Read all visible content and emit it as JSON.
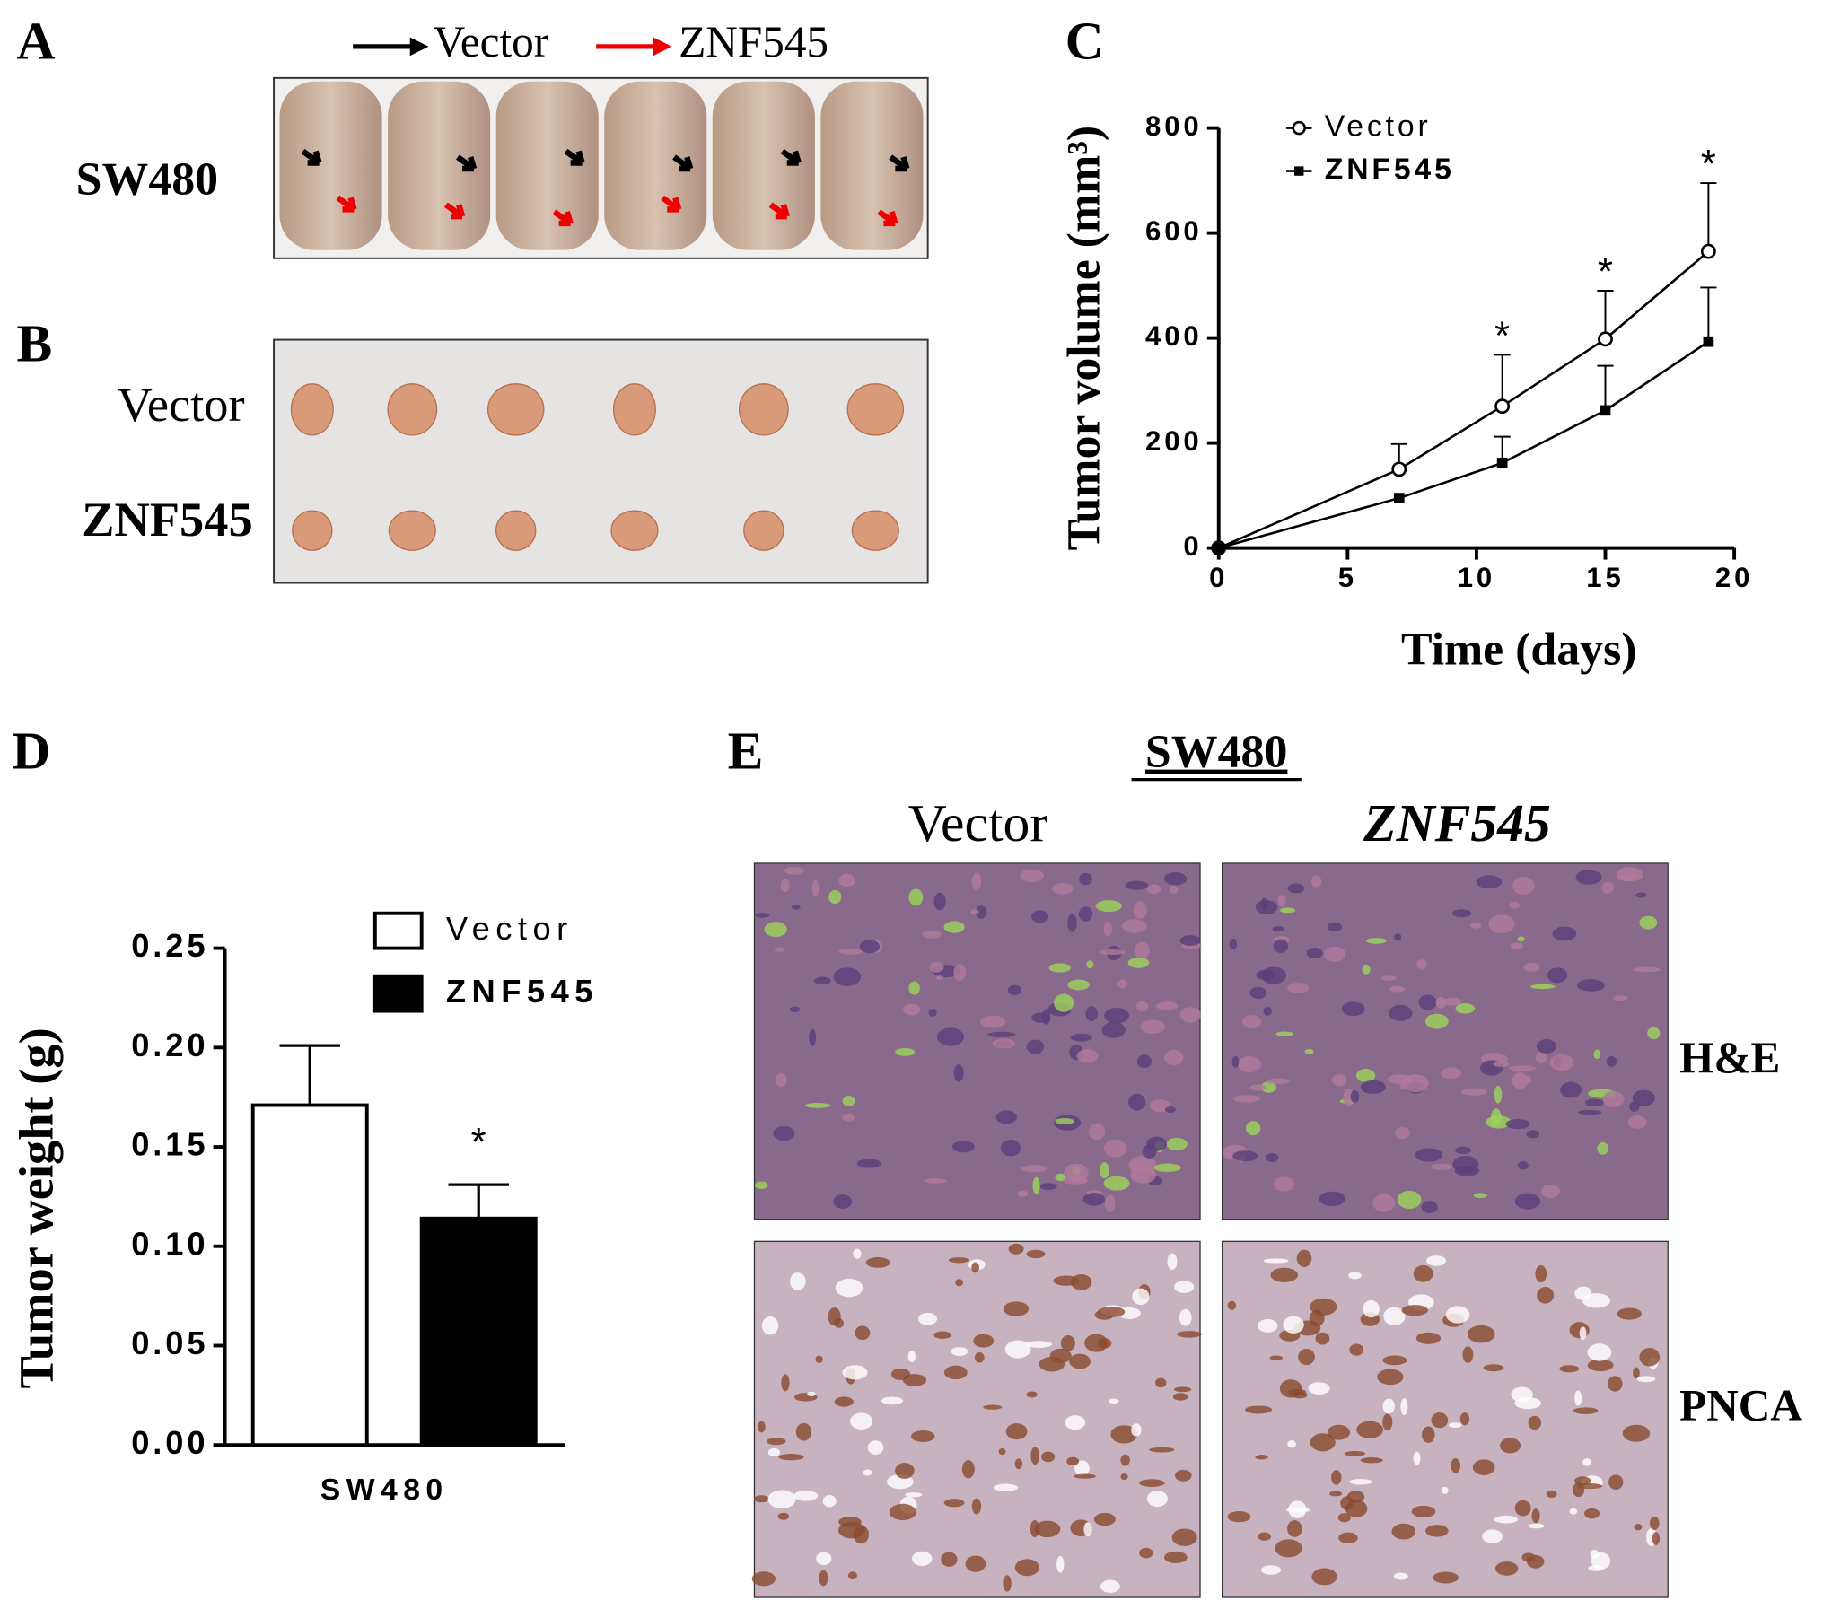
{
  "panel_labels": [
    "A",
    "B",
    "C",
    "D",
    "E"
  ],
  "panel_a": {
    "legend": [
      "Vector",
      "ZNF545"
    ],
    "row_label": "SW480"
  },
  "panel_b": {
    "row_labels": [
      "Vector",
      "ZNF545"
    ]
  },
  "panel_e": {
    "title": "SW480",
    "columns": [
      "Vector",
      "ZNF545"
    ],
    "rows": [
      "H&E",
      "PNCA"
    ]
  },
  "chart_data": [
    {
      "type": "line",
      "ylabel": "Tumor volume (mm³)",
      "xlabel": "Time (days)",
      "x": [
        0,
        7,
        11,
        15,
        19
      ],
      "series": [
        {
          "name": "Vector",
          "color": "#000000",
          "marker": "circle",
          "values": [
            0,
            150,
            270,
            398,
            565
          ],
          "errors": [
            0,
            48,
            98,
            92,
            130
          ]
        },
        {
          "name": "ZNF545",
          "color": "#000000",
          "marker": "square",
          "values": [
            0,
            95,
            162,
            262,
            393
          ],
          "errors": [
            0,
            0,
            50,
            85,
            103
          ]
        }
      ],
      "annotations": [
        {
          "text": "*",
          "x": 11
        },
        {
          "text": "*",
          "x": 15
        },
        {
          "text": "*",
          "x": 19
        }
      ],
      "xlim": [
        0,
        20
      ],
      "xticks": [
        0,
        5,
        10,
        15,
        20
      ],
      "ylim": [
        0,
        800
      ],
      "yticks": [
        0,
        200,
        400,
        600,
        800
      ],
      "legend": "upper left"
    },
    {
      "type": "bar",
      "ylabel": "Tumor weight (g)",
      "categories": [
        "SW480"
      ],
      "series": [
        {
          "name": "Vector",
          "color": "#ffffff",
          "values": [
            0.171
          ],
          "errors": [
            0.03
          ]
        },
        {
          "name": "ZNF545",
          "color": "#000000",
          "values": [
            0.114
          ],
          "errors": [
            0.017
          ],
          "annotation": "*"
        }
      ],
      "ylim": [
        0,
        0.25
      ],
      "yticks": [
        {
          "value": 0,
          "label": "0.00"
        },
        {
          "value": 0.05,
          "label": "0.05"
        },
        {
          "value": 0.1,
          "label": "0.10"
        },
        {
          "value": 0.15,
          "label": "0.15"
        },
        {
          "value": 0.2,
          "label": "0.20"
        },
        {
          "value": 0.25,
          "label": "0.25"
        }
      ],
      "legend": "upper right"
    }
  ]
}
